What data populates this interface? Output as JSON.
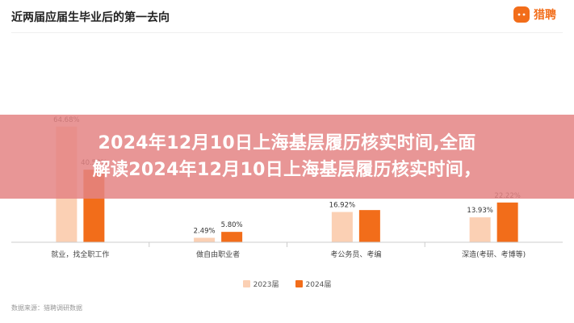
{
  "header": {
    "chart_title": "近两届应届生毕业后的第一去向",
    "logo_text": "猎聘"
  },
  "overlay": {
    "headline_line1": "2024年12月10日上海基层履历核实时间,全面",
    "headline_line2": "解读2024年12月10日上海基层履历核实时间，"
  },
  "footer": {
    "source": "数据来源：猎聘调研数据"
  },
  "colors": {
    "series_2023": "#fbd0b4",
    "series_2024": "#f26d1a",
    "brand": "#f26d1a"
  },
  "chart_data": {
    "type": "bar",
    "title": "近两届应届生毕业后的第一去向",
    "xlabel": "",
    "ylabel": "",
    "ylim": [
      0,
      70
    ],
    "grid": false,
    "legend_position": "bottom",
    "categories": [
      "就业，找全职工作",
      "做自由职业者",
      "考公务员、考编",
      "深造(考研、考博等)"
    ],
    "series": [
      {
        "name": "2023届",
        "values": [
          64.68,
          2.49,
          16.92,
          13.93
        ],
        "labels": [
          "64.68%",
          "2.49%",
          "16.92%",
          "13.93%"
        ]
      },
      {
        "name": "2024届",
        "values": [
          40.58,
          5.8,
          18.0,
          22.22
        ],
        "labels": [
          "40.58%",
          "5.80%",
          "",
          "22.22%"
        ]
      }
    ]
  }
}
